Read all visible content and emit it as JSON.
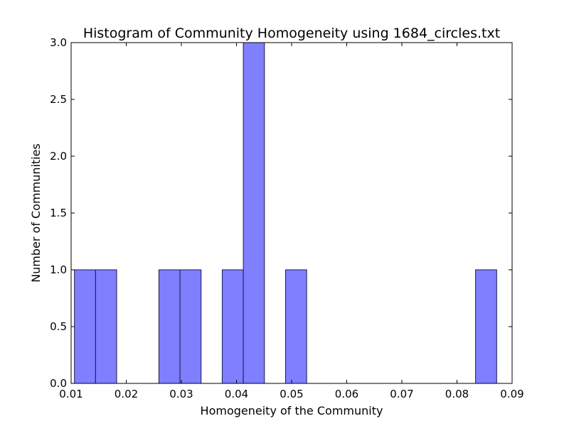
{
  "chart_data": {
    "type": "bar",
    "title": "Histogram of Community Homogeneity using 1684_circles.txt",
    "xlabel": "Homogeneity of the Community",
    "ylabel": "Number of Communities",
    "xlim": [
      0.01,
      0.09
    ],
    "ylim": [
      0.0,
      3.0
    ],
    "x_ticks": [
      "0.01",
      "0.02",
      "0.03",
      "0.04",
      "0.05",
      "0.06",
      "0.07",
      "0.08",
      "0.09"
    ],
    "y_ticks": [
      "0.0",
      "0.5",
      "1.0",
      "1.5",
      "2.0",
      "2.5",
      "3.0"
    ],
    "bin_edges": [
      0.0106,
      0.01443,
      0.01826,
      0.02209,
      0.02592,
      0.02975,
      0.03358,
      0.03741,
      0.04124,
      0.04507,
      0.0489,
      0.05273,
      0.05656,
      0.06039,
      0.06422,
      0.06805,
      0.07188,
      0.07571,
      0.07954,
      0.08337,
      0.0872
    ],
    "values": [
      1,
      1,
      0,
      0,
      1,
      1,
      0,
      1,
      3,
      0,
      1,
      0,
      0,
      0,
      0,
      0,
      0,
      0,
      0,
      1
    ],
    "bar_color": "#7f7fff",
    "bar_edge_color": "#1a1a4d",
    "grid": false
  }
}
